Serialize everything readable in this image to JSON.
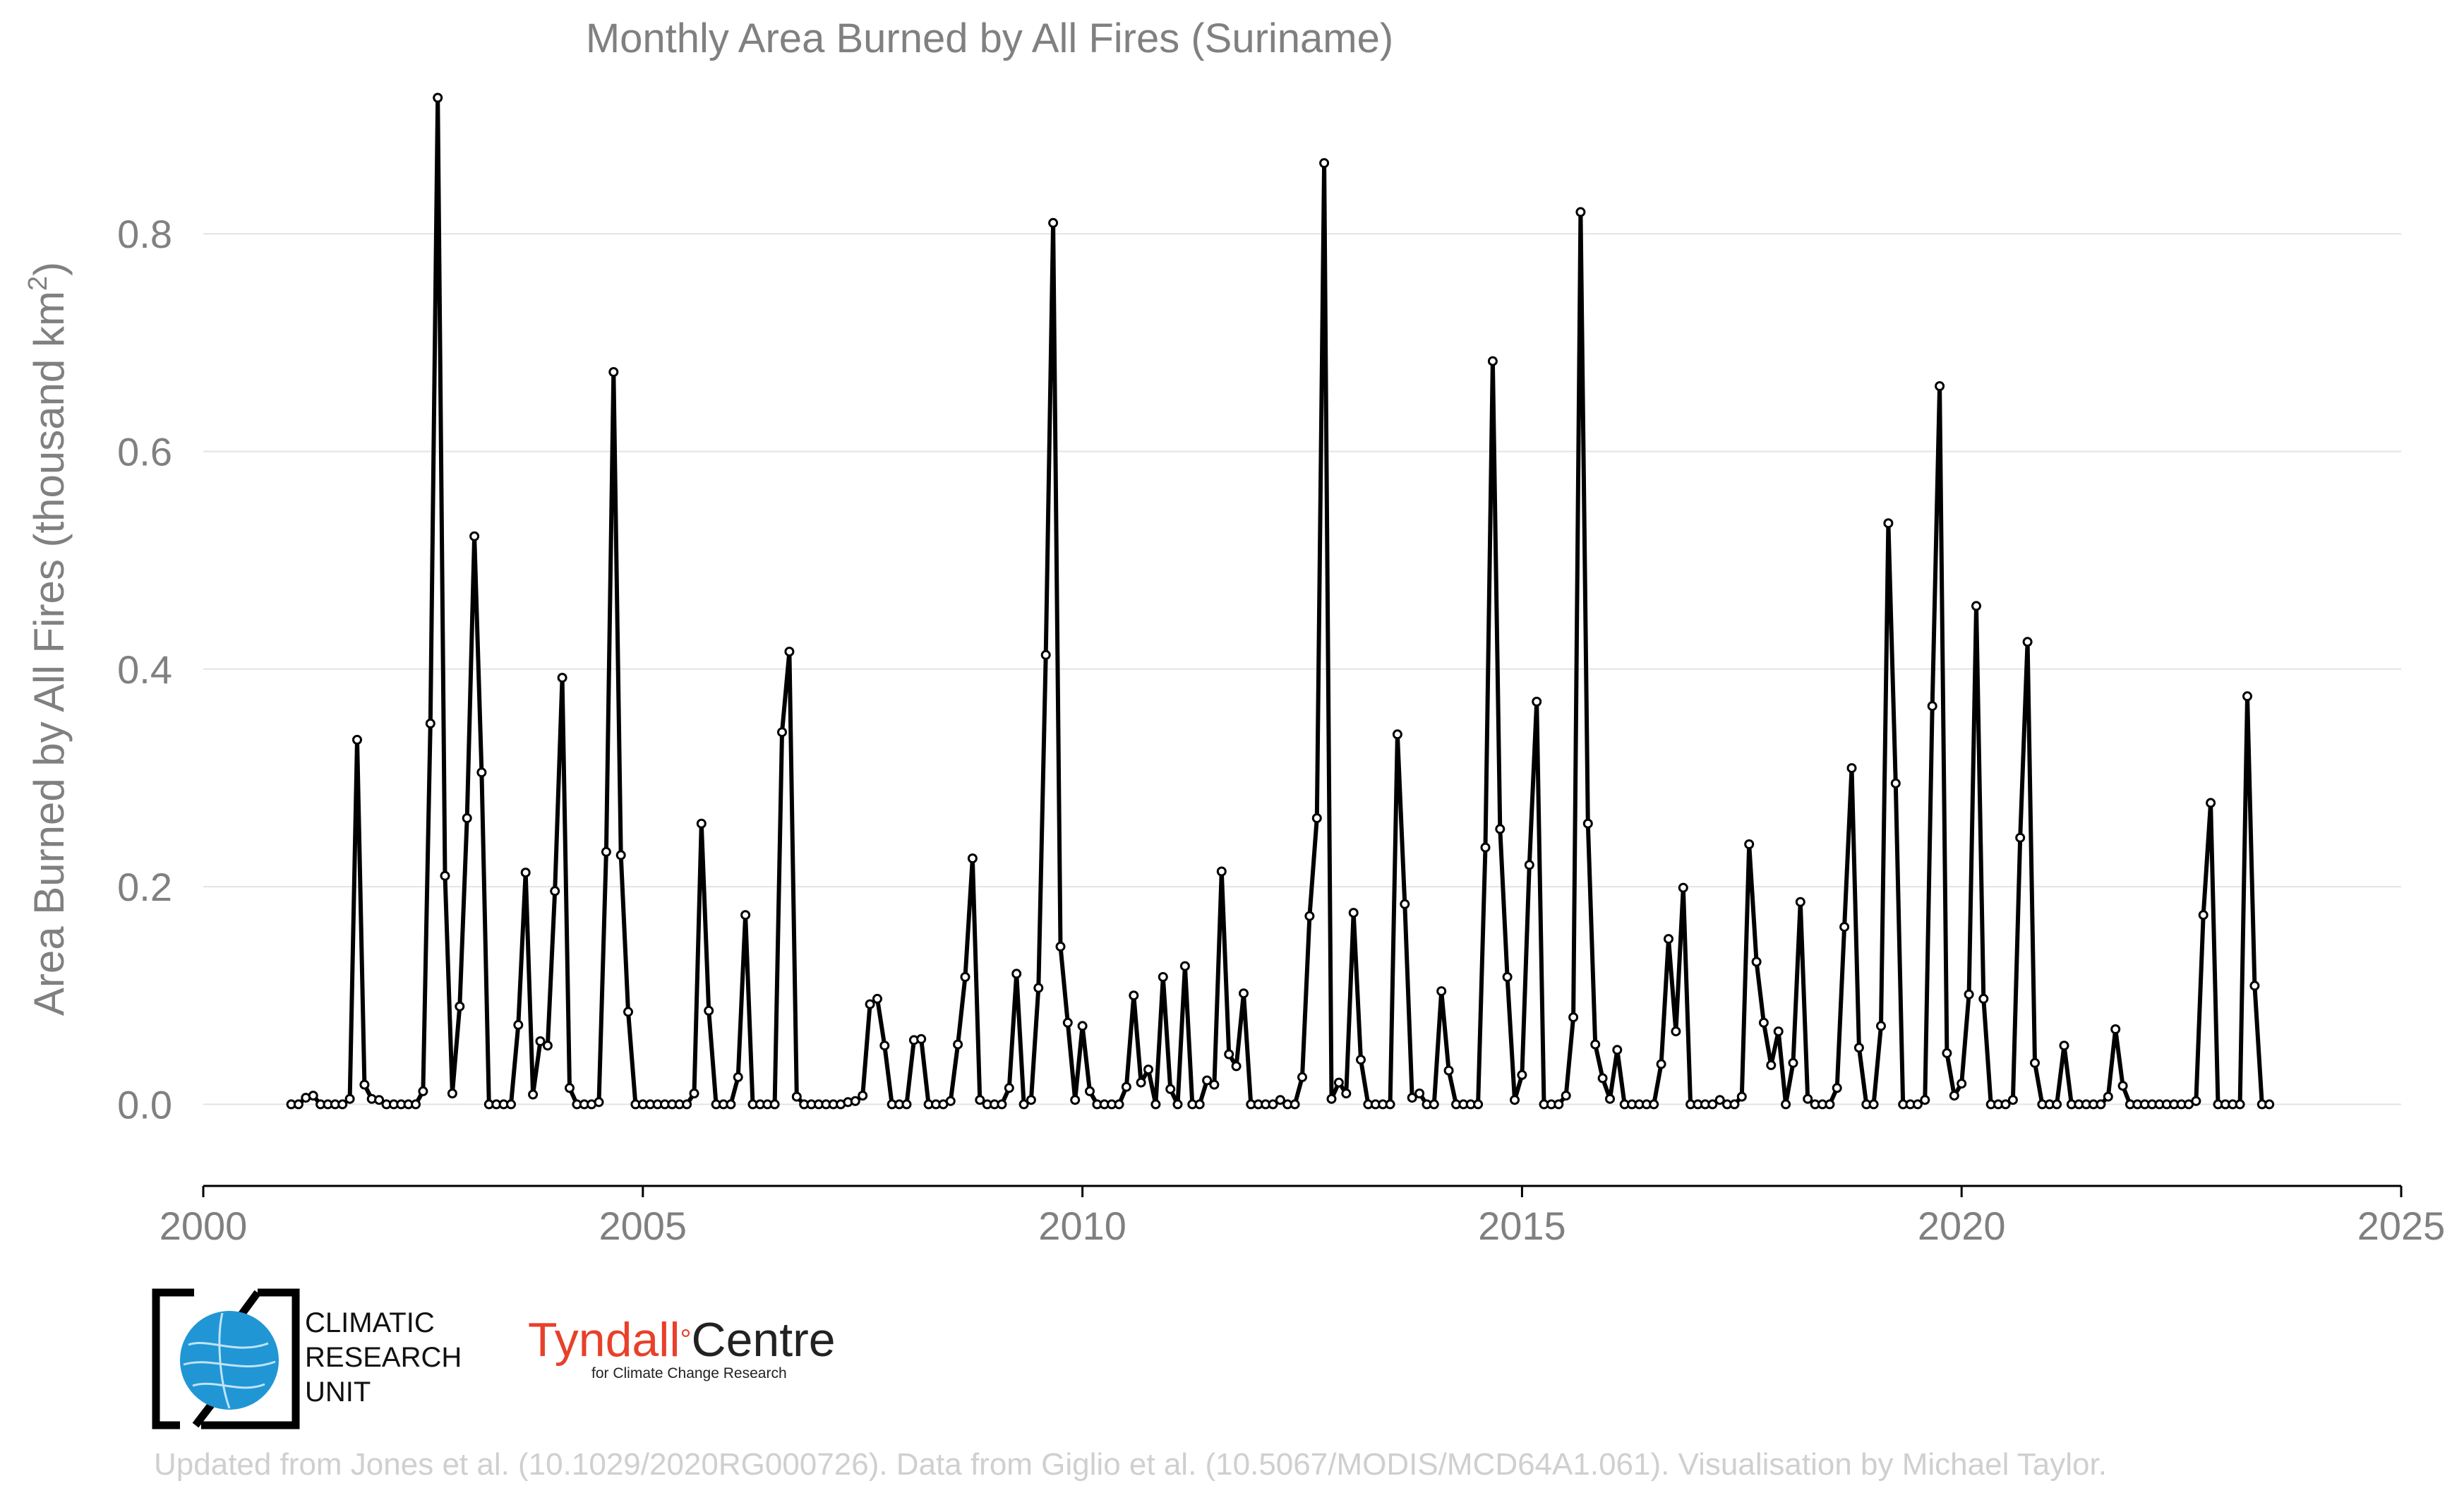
{
  "chart_data": {
    "type": "line",
    "title": "Monthly Area Burned by All Fires (Suriname)",
    "xlabel": "",
    "ylabel": "Area Burned by All Fires (thousand km",
    "ylabel_sup": "2",
    "ylabel_end": ")",
    "xlim": [
      2000,
      2025
    ],
    "ylim": [
      -0.075,
      0.95
    ],
    "xticks": [
      2000,
      2005,
      2010,
      2015,
      2020,
      2025
    ],
    "xtick_labels": [
      "2000",
      "2005",
      "2010",
      "2015",
      "2020",
      "2025"
    ],
    "yticks": [
      0.0,
      0.2,
      0.4,
      0.6,
      0.8
    ],
    "ytick_labels": [
      "0.0",
      "0.2",
      "0.4",
      "0.6",
      "0.8"
    ],
    "grid": "horizontal",
    "line_color": "#000000",
    "marker_fill": "#ffffff",
    "start": "2001-01",
    "frequency": "monthly",
    "series": [
      {
        "values": [
          0.0,
          0.0,
          0.006,
          0.008,
          0.0,
          0.0,
          0.0,
          0.0,
          0.005,
          0.335,
          0.018,
          0.005,
          0.004,
          0.0,
          0.0,
          0.0,
          0.0,
          0.0,
          0.012,
          0.35,
          0.925,
          0.21,
          0.01,
          0.09,
          0.263,
          0.522,
          0.305,
          0.0,
          0.0,
          0.0,
          0.0,
          0.073,
          0.213,
          0.009,
          0.058,
          0.054,
          0.196,
          0.392,
          0.015,
          0.0,
          0.0,
          0.0,
          0.002,
          0.232,
          0.673,
          0.229,
          0.085,
          0.0,
          0.0,
          0.0,
          0.0,
          0.0,
          0.0,
          0.0,
          0.0,
          0.01,
          0.258,
          0.086,
          0.0,
          0.0,
          0.0,
          0.025,
          0.174,
          0.0,
          0.0,
          0.0,
          0.0,
          0.342,
          0.416,
          0.007,
          0.0,
          0.0,
          0.0,
          0.0,
          0.0,
          0.0,
          0.002,
          0.003,
          0.008,
          0.092,
          0.097,
          0.054,
          0.0,
          0.0,
          0.0,
          0.059,
          0.06,
          0.0,
          0.0,
          0.0,
          0.003,
          0.055,
          0.117,
          0.226,
          0.004,
          0.0,
          0.0,
          0.0,
          0.015,
          0.12,
          0.0,
          0.004,
          0.107,
          0.413,
          0.81,
          0.145,
          0.075,
          0.004,
          0.072,
          0.012,
          0.0,
          0.0,
          0.0,
          0.0,
          0.016,
          0.1,
          0.02,
          0.032,
          0.0,
          0.117,
          0.014,
          0.0,
          0.127,
          0.0,
          0.0,
          0.022,
          0.018,
          0.214,
          0.046,
          0.035,
          0.102,
          0.0,
          0.0,
          0.0,
          0.0,
          0.004,
          0.0,
          0.0,
          0.025,
          0.173,
          0.263,
          0.865,
          0.005,
          0.02,
          0.01,
          0.176,
          0.041,
          0.0,
          0.0,
          0.0,
          0.0,
          0.34,
          0.184,
          0.006,
          0.01,
          0.0,
          0.0,
          0.104,
          0.031,
          0.0,
          0.0,
          0.0,
          0.0,
          0.236,
          0.683,
          0.253,
          0.117,
          0.004,
          0.027,
          0.22,
          0.37,
          0.0,
          0.0,
          0.0,
          0.008,
          0.08,
          0.82,
          0.258,
          0.055,
          0.024,
          0.005,
          0.05,
          0.0,
          0.0,
          0.0,
          0.0,
          0.0,
          0.037,
          0.152,
          0.067,
          0.199,
          0.0,
          0.0,
          0.0,
          0.0,
          0.004,
          0.0,
          0.0,
          0.007,
          0.239,
          0.131,
          0.075,
          0.036,
          0.067,
          0.0,
          0.038,
          0.186,
          0.005,
          0.0,
          0.0,
          0.0,
          0.015,
          0.163,
          0.309,
          0.052,
          0.0,
          0.0,
          0.072,
          0.534,
          0.295,
          0.0,
          0.0,
          0.0,
          0.004,
          0.366,
          0.66,
          0.047,
          0.008,
          0.019,
          0.101,
          0.458,
          0.097,
          0.0,
          0.0,
          0.0,
          0.004,
          0.245,
          0.425,
          0.038,
          0.0,
          0.0,
          0.0,
          0.054,
          0.0,
          0.0,
          0.0,
          0.0,
          0.0,
          0.007,
          0.069,
          0.017,
          0.0,
          0.0,
          0.0,
          0.0,
          0.0,
          0.0,
          0.0,
          0.0,
          0.0,
          0.003,
          0.174,
          0.277,
          0.0,
          0.0,
          0.0,
          0.0,
          0.375,
          0.109,
          0.0,
          0.0
        ]
      }
    ]
  },
  "logos": {
    "cru_lines": [
      "CLIMATIC",
      "RESEARCH",
      "UNIT"
    ],
    "tyndall_name": "Tyndall",
    "tyndall_degree": "°",
    "tyndall_centre": "Centre",
    "tyndall_sub": "for Climate Change Research"
  },
  "credit": "Updated from Jones et al. (10.1029/2020RG000726). Data from Giglio et al. (10.5067/MODIS/MCD64A1.061). Visualisation by Michael Taylor."
}
